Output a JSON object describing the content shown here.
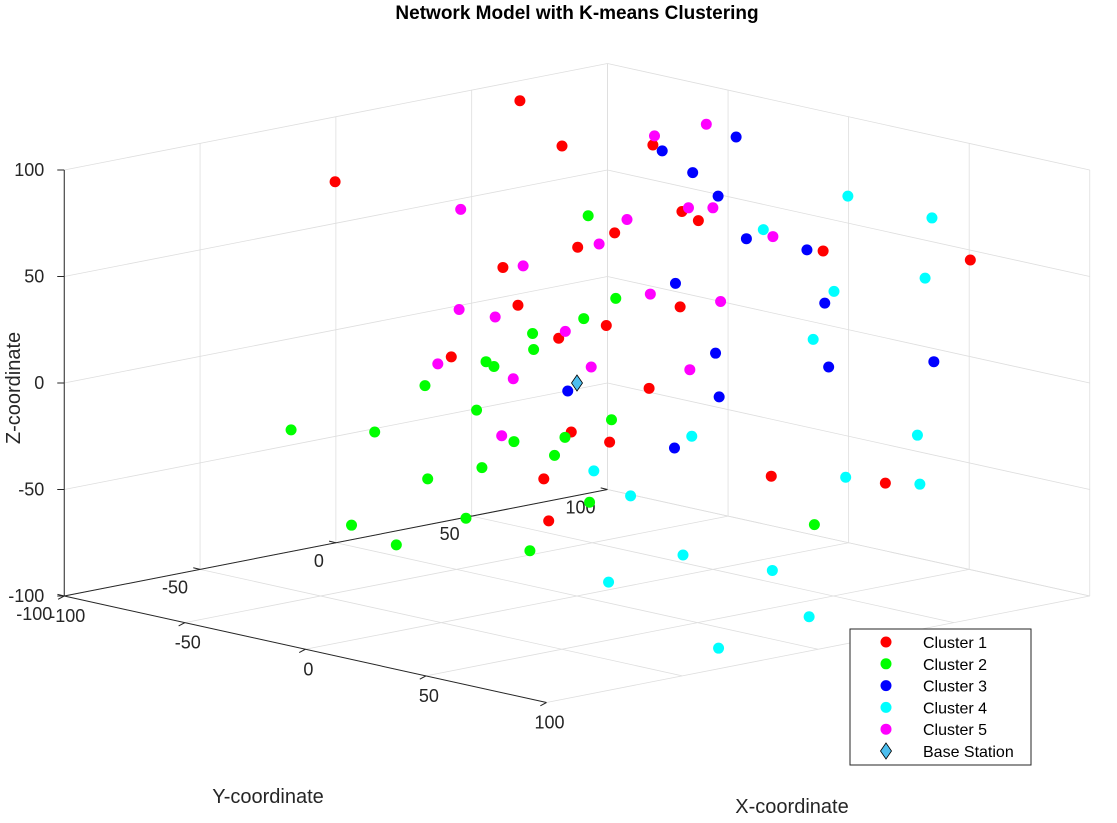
{
  "chart_data": {
    "type": "scatter3d",
    "title": "Network Model with K-means Clustering",
    "xlabel": "X-coordinate",
    "ylabel": "Y-coordinate",
    "zlabel": "Z-coordinate",
    "xlim": [
      -100,
      100
    ],
    "ylim": [
      -100,
      100
    ],
    "zlim": [
      -100,
      100
    ],
    "x_ticks": [
      "-100",
      "-50",
      "0",
      "50",
      "100"
    ],
    "y_ticks": [
      "-100",
      "-50",
      "0",
      "50",
      "100"
    ],
    "z_ticks": [
      "-100",
      "-50",
      "0",
      "50",
      "100"
    ],
    "grid": true,
    "legend_position": "bottom-right",
    "series": [
      {
        "name": "Cluster 1",
        "color": "#ff0000",
        "marker": "circle",
        "points": [
          [
            19,
            -3,
            76
          ],
          [
            -7,
            17,
            21
          ],
          [
            -42,
            -9,
            4
          ],
          [
            -29,
            19,
            9
          ],
          [
            -44,
            67,
            84
          ],
          [
            -80,
            50,
            100
          ],
          [
            73,
            80,
            56
          ],
          [
            -15,
            58,
            58
          ],
          [
            31,
            44,
            -47
          ],
          [
            -44,
            -50,
            96
          ],
          [
            -51,
            18,
            37
          ],
          [
            27,
            14,
            39
          ],
          [
            1,
            -3,
            -22
          ],
          [
            48,
            48,
            62
          ],
          [
            -9,
            20,
            -35
          ],
          [
            -31,
            22,
            98
          ],
          [
            13,
            15,
            -3
          ],
          [
            -29,
            26,
            50
          ],
          [
            22,
            94,
            -65
          ],
          [
            -38,
            12,
            24
          ],
          [
            30,
            12,
            85
          ],
          [
            2,
            -14,
            -41
          ],
          [
            -23,
            10,
            -73
          ]
        ]
      },
      {
        "name": "Cluster 2",
        "color": "#00ff00",
        "marker": "circle",
        "points": [
          [
            -89,
            -4,
            -88
          ],
          [
            -75,
            36,
            -20
          ],
          [
            -27,
            -31,
            -44
          ],
          [
            -47,
            56,
            14
          ],
          [
            -33,
            42,
            -36
          ],
          [
            -59,
            57,
            -85
          ],
          [
            0,
            -35,
            -31
          ],
          [
            3,
            -20,
            -73
          ],
          [
            -31,
            -39,
            -74
          ],
          [
            41,
            51,
            -69
          ],
          [
            -60,
            -52,
            -24
          ],
          [
            -10,
            -32,
            -58
          ],
          [
            -27,
            8,
            7
          ],
          [
            -31,
            30,
            15
          ],
          [
            -14,
            8,
            -31
          ],
          [
            -51,
            37,
            -56
          ],
          [
            -77,
            52,
            -9
          ],
          [
            -67,
            -15,
            -36
          ],
          [
            -18,
            -21,
            -12
          ],
          [
            -7,
            -17,
            -25
          ],
          [
            -27,
            -32,
            0
          ],
          [
            -58,
            18,
            -9
          ],
          [
            -1,
            5,
            77
          ]
        ]
      },
      {
        "name": "Cluster 3",
        "color": "#0000ff",
        "marker": "circle",
        "points": [
          [
            -30,
            89,
            38
          ],
          [
            -32,
            71,
            73
          ],
          [
            12,
            82,
            -10
          ],
          [
            -23,
            79,
            90
          ],
          [
            45,
            12,
            96
          ],
          [
            -30,
            58,
            87
          ],
          [
            -32,
            25,
            -18
          ],
          [
            59,
            79,
            5
          ],
          [
            1,
            35,
            -39
          ],
          [
            -9,
            59,
            -3
          ],
          [
            7,
            85,
            18
          ],
          [
            -3,
            55,
            -21
          ],
          [
            -29,
            62,
            24
          ],
          [
            12,
            74,
            47
          ]
        ]
      },
      {
        "name": "Cluster 4",
        "color": "#00ffff",
        "marker": "circle",
        "points": [
          [
            72,
            8,
            -72
          ],
          [
            87,
            49,
            -38
          ],
          [
            66,
            10,
            86
          ],
          [
            83,
            57,
            84
          ],
          [
            69,
            -19,
            -3
          ],
          [
            38,
            -14,
            -40
          ],
          [
            72,
            35,
            -35
          ],
          [
            85,
            10,
            -91
          ],
          [
            45,
            47,
            20
          ],
          [
            95,
            41,
            -11
          ],
          [
            88,
            -26,
            -96
          ],
          [
            48,
            52,
            42
          ],
          [
            39,
            -23,
            -78
          ],
          [
            61,
            74,
            46
          ],
          [
            47,
            58,
            85
          ],
          [
            71,
            -24,
            -57
          ],
          [
            25,
            -16,
            -31
          ]
        ]
      },
      {
        "name": "Cluster 5",
        "color": "#ff00ff",
        "marker": "circle",
        "points": [
          [
            -66,
            77,
            41
          ],
          [
            0,
            27,
            35
          ],
          [
            -10,
            81,
            46
          ],
          [
            -11,
            15,
            1
          ],
          [
            -76,
            96,
            73
          ],
          [
            -41,
            -7,
            26
          ],
          [
            13,
            30,
            2
          ],
          [
            -36,
            73,
            55
          ],
          [
            -55,
            29,
            34
          ],
          [
            -28,
            33,
            50
          ],
          [
            -78,
            18,
            -15
          ],
          [
            -24,
            17,
            14
          ],
          [
            19,
            36,
            34
          ],
          [
            -64,
            14,
            62
          ],
          [
            -50,
            92,
            86
          ],
          [
            -76,
            44,
            -28
          ],
          [
            -88,
            48,
            -3
          ],
          [
            -27,
            74,
            57
          ],
          [
            -47,
            14,
            -40
          ]
        ]
      },
      {
        "name": "Base Station",
        "color": "#4dbeee",
        "marker": "diamond",
        "points": [
          [
            0,
            0,
            0
          ]
        ]
      }
    ]
  }
}
